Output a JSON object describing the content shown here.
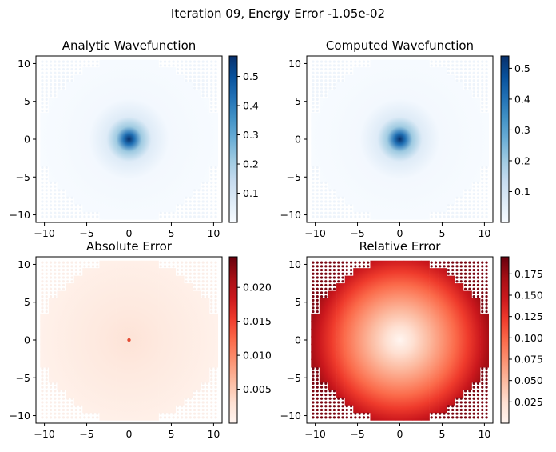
{
  "suptitle": "Iteration 09, Energy Error -1.05e-02",
  "chart_data": [
    {
      "type": "heatmap",
      "title": "Analytic Wavefunction",
      "xlim": [
        -11,
        11
      ],
      "ylim": [
        -11,
        11
      ],
      "xticks": [
        -10,
        -5,
        0,
        5,
        10
      ],
      "yticks": [
        -10,
        -5,
        0,
        5,
        10
      ],
      "colormap": "Blues",
      "clim": [
        0.0,
        0.57
      ],
      "colorbar_ticks": [
        0.1,
        0.2,
        0.3,
        0.4,
        0.5
      ],
      "peak": {
        "x": 0,
        "y": 0,
        "value": 0.56
      },
      "pattern": "gaussian"
    },
    {
      "type": "heatmap",
      "title": "Computed Wavefunction",
      "xlim": [
        -11,
        11
      ],
      "ylim": [
        -11,
        11
      ],
      "xticks": [
        -10,
        -5,
        0,
        5,
        10
      ],
      "yticks": [
        -10,
        -5,
        0,
        5,
        10
      ],
      "colormap": "Blues",
      "clim": [
        0.0,
        0.54
      ],
      "colorbar_ticks": [
        0.1,
        0.2,
        0.3,
        0.4,
        0.5
      ],
      "peak": {
        "x": 0,
        "y": 0,
        "value": 0.54
      },
      "pattern": "gaussian"
    },
    {
      "type": "heatmap",
      "title": "Absolute Error",
      "xlim": [
        -11,
        11
      ],
      "ylim": [
        -11,
        11
      ],
      "xticks": [
        -10,
        -5,
        0,
        5,
        10
      ],
      "yticks": [
        -10,
        -5,
        0,
        5,
        10
      ],
      "colormap": "Reds",
      "clim": [
        0.0,
        0.0245
      ],
      "colorbar_ticks": [
        0.005,
        0.01,
        0.015,
        0.02
      ],
      "colorbar_labels": [
        "0.005",
        "0.010",
        "0.015",
        "0.020"
      ],
      "peak": {
        "x": 0,
        "y": 0,
        "value": 0.024
      },
      "pattern": "spike"
    },
    {
      "type": "heatmap",
      "title": "Relative Error",
      "xlim": [
        -11,
        11
      ],
      "ylim": [
        -11,
        11
      ],
      "xticks": [
        -10,
        -5,
        0,
        5,
        10
      ],
      "yticks": [
        -10,
        -5,
        0,
        5,
        10
      ],
      "colormap": "Reds",
      "clim": [
        0.0,
        0.195
      ],
      "colorbar_ticks": [
        0.025,
        0.05,
        0.075,
        0.1,
        0.125,
        0.15,
        0.175
      ],
      "colorbar_labels": [
        "0.025",
        "0.050",
        "0.075",
        "0.100",
        "0.125",
        "0.150",
        "0.175"
      ],
      "peak": {
        "x": 0,
        "y": 0,
        "value": 0.0
      },
      "pattern": "radial-increase"
    }
  ],
  "colors": {
    "blues_low": "#f7fbff",
    "blues_high": "#08306b",
    "reds_low": "#fff5f0",
    "reds_high": "#67000d"
  }
}
